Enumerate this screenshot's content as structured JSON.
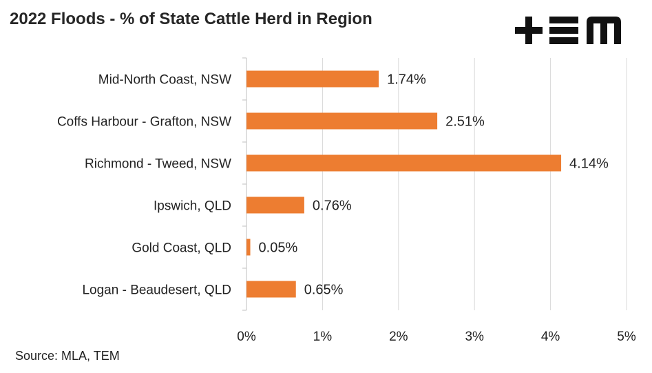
{
  "title": "2022 Floods - % of State Cattle Herd in Region",
  "source": "Source: MLA, TEM",
  "logo": {
    "icon": "tem-logo",
    "text": "TEM",
    "color": "#111111"
  },
  "chart_data": {
    "type": "bar",
    "orientation": "horizontal",
    "categories": [
      "Mid-North Coast, NSW",
      "Coffs Harbour - Grafton, NSW",
      "Richmond - Tweed, NSW",
      "Ipswich, QLD",
      "Gold Coast, QLD",
      "Logan - Beaudesert, QLD"
    ],
    "values": [
      1.74,
      2.51,
      4.14,
      0.76,
      0.05,
      0.65
    ],
    "data_labels": [
      "1.74%",
      "2.51%",
      "4.14%",
      "0.76%",
      "0.05%",
      "0.65%"
    ],
    "x_ticks": [
      0,
      1,
      2,
      3,
      4,
      5
    ],
    "x_tick_labels": [
      "0%",
      "1%",
      "2%",
      "3%",
      "4%",
      "5%"
    ],
    "xlim": [
      0,
      5
    ],
    "grid": "vertical",
    "bar_color": "#ED7D31",
    "grid_color": "#D9D9D9"
  }
}
